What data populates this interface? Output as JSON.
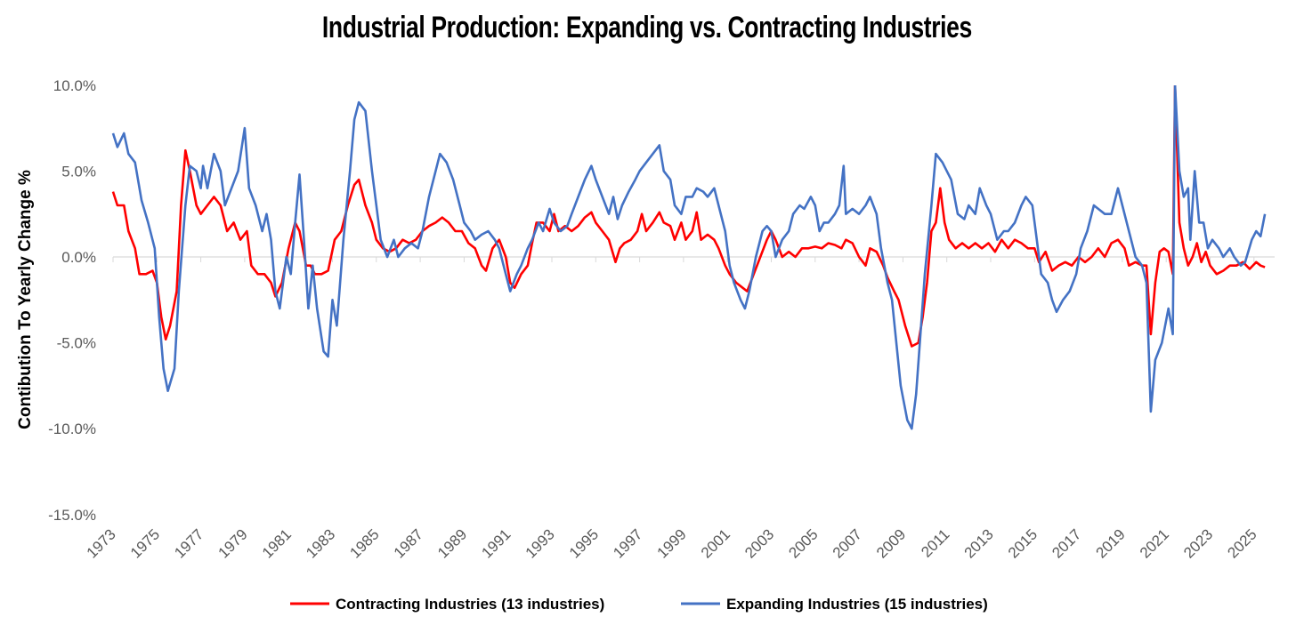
{
  "chart_data": {
    "type": "line",
    "title": "Industrial Production: Expanding vs. Contracting Industries",
    "xlabel": "",
    "ylabel": "Contibution To Yearly Change %",
    "ylim": [
      -15,
      10
    ],
    "xlim": [
      1973,
      2026
    ],
    "y_ticks": [
      "10.0%",
      "5.0%",
      "0.0%",
      "-5.0%",
      "-10.0%",
      "-15.0%"
    ],
    "y_tick_values": [
      10,
      5,
      0,
      -5,
      -10,
      -15
    ],
    "x_ticks": [
      "1973",
      "1975",
      "1977",
      "1979",
      "1981",
      "1983",
      "1985",
      "1987",
      "1989",
      "1991",
      "1993",
      "1995",
      "1997",
      "1999",
      "2001",
      "2003",
      "2005",
      "2007",
      "2009",
      "2011",
      "2013",
      "2015",
      "2017",
      "2019",
      "2021",
      "2023",
      "2025"
    ],
    "grid": false,
    "legend_position": "bottom",
    "series": [
      {
        "name": "Contracting Industries (13 industries)",
        "color": "#FF0000",
        "x": [
          1973.0,
          1973.2,
          1973.5,
          1973.7,
          1974.0,
          1974.2,
          1974.5,
          1974.8,
          1975.0,
          1975.2,
          1975.4,
          1975.6,
          1975.9,
          1976.1,
          1976.3,
          1976.5,
          1976.8,
          1977.0,
          1977.3,
          1977.6,
          1977.9,
          1978.2,
          1978.5,
          1978.8,
          1979.1,
          1979.3,
          1979.6,
          1979.9,
          1980.2,
          1980.4,
          1980.7,
          1981.0,
          1981.3,
          1981.5,
          1981.8,
          1982.0,
          1982.2,
          1982.5,
          1982.8,
          1983.1,
          1983.4,
          1983.7,
          1984.0,
          1984.2,
          1984.5,
          1984.8,
          1985.0,
          1985.3,
          1985.6,
          1985.9,
          1986.2,
          1986.5,
          1986.8,
          1987.1,
          1987.4,
          1987.7,
          1988.0,
          1988.3,
          1988.6,
          1988.9,
          1989.2,
          1989.5,
          1989.8,
          1990.0,
          1990.3,
          1990.6,
          1990.9,
          1991.1,
          1991.3,
          1991.6,
          1991.9,
          1992.1,
          1992.3,
          1992.6,
          1992.9,
          1993.1,
          1993.3,
          1993.6,
          1993.9,
          1994.2,
          1994.5,
          1994.8,
          1995.0,
          1995.3,
          1995.6,
          1995.9,
          1996.1,
          1996.3,
          1996.6,
          1996.9,
          1997.1,
          1997.3,
          1997.6,
          1997.9,
          1998.1,
          1998.4,
          1998.6,
          1998.9,
          1999.1,
          1999.4,
          1999.6,
          1999.8,
          2000.1,
          2000.4,
          2000.6,
          2000.9,
          2001.1,
          2001.4,
          2001.7,
          2001.9,
          2002.2,
          2002.5,
          2002.8,
          2003.0,
          2003.2,
          2003.5,
          2003.8,
          2004.1,
          2004.4,
          2004.7,
          2005.0,
          2005.3,
          2005.6,
          2005.9,
          2006.2,
          2006.4,
          2006.7,
          2007.0,
          2007.3,
          2007.5,
          2007.8,
          2008.1,
          2008.3,
          2008.6,
          2008.8,
          2009.1,
          2009.4,
          2009.7,
          2009.9,
          2010.1,
          2010.3,
          2010.5,
          2010.7,
          2010.9,
          2011.1,
          2011.4,
          2011.7,
          2012.0,
          2012.3,
          2012.6,
          2012.9,
          2013.2,
          2013.5,
          2013.8,
          2014.1,
          2014.4,
          2014.7,
          2015.0,
          2015.2,
          2015.5,
          2015.8,
          2016.1,
          2016.4,
          2016.7,
          2017.0,
          2017.3,
          2017.6,
          2017.9,
          2018.2,
          2018.5,
          2018.8,
          2019.1,
          2019.3,
          2019.6,
          2019.9,
          2020.1,
          2020.3,
          2020.5,
          2020.7,
          2020.9,
          2021.1,
          2021.3,
          2021.4,
          2021.6,
          2021.8,
          2022.0,
          2022.2,
          2022.4,
          2022.6,
          2022.8,
          2023.0,
          2023.3,
          2023.6,
          2023.9,
          2024.2,
          2024.5,
          2024.8,
          2025.1,
          2025.3,
          2025.5
        ],
        "values": [
          3.8,
          3.0,
          3.0,
          1.5,
          0.5,
          -1.0,
          -1.0,
          -0.8,
          -1.5,
          -3.5,
          -4.8,
          -4.0,
          -2.0,
          3.0,
          6.2,
          5.0,
          3.0,
          2.5,
          3.0,
          3.5,
          3.0,
          1.5,
          2.0,
          1.0,
          1.5,
          -0.5,
          -1.0,
          -1.0,
          -1.5,
          -2.3,
          -1.5,
          0.5,
          2.0,
          1.5,
          -0.5,
          -0.5,
          -1.0,
          -1.0,
          -0.8,
          1.0,
          1.5,
          3.0,
          4.2,
          4.5,
          3.0,
          2.0,
          1.0,
          0.5,
          0.3,
          0.5,
          1.0,
          0.8,
          1.0,
          1.5,
          1.8,
          2.0,
          2.3,
          2.0,
          1.5,
          1.5,
          0.8,
          0.5,
          -0.5,
          -0.8,
          0.5,
          1.0,
          0.0,
          -1.5,
          -1.8,
          -1.0,
          -0.5,
          0.8,
          2.0,
          2.0,
          1.5,
          2.5,
          1.5,
          1.8,
          1.5,
          1.8,
          2.3,
          2.6,
          2.0,
          1.5,
          1.0,
          -0.3,
          0.5,
          0.8,
          1.0,
          1.5,
          2.5,
          1.5,
          2.0,
          2.6,
          2.0,
          1.8,
          1.0,
          2.0,
          1.0,
          1.5,
          2.6,
          1.0,
          1.3,
          1.0,
          0.5,
          -0.5,
          -1.0,
          -1.5,
          -1.8,
          -2.0,
          -1.0,
          0.0,
          1.0,
          1.5,
          1.0,
          0.0,
          0.3,
          0.0,
          0.5,
          0.5,
          0.6,
          0.5,
          0.8,
          0.7,
          0.5,
          1.0,
          0.8,
          0.0,
          -0.5,
          0.5,
          0.3,
          -0.5,
          -1.2,
          -2.0,
          -2.5,
          -4.0,
          -5.2,
          -5.0,
          -3.5,
          -1.5,
          1.5,
          2.0,
          4.0,
          2.0,
          1.0,
          0.5,
          0.8,
          0.5,
          0.8,
          0.5,
          0.8,
          0.3,
          1.0,
          0.5,
          1.0,
          0.8,
          0.5,
          0.5,
          -0.3,
          0.3,
          -0.8,
          -0.5,
          -0.3,
          -0.5,
          0.0,
          -0.3,
          0.0,
          0.5,
          0.0,
          0.8,
          1.0,
          0.5,
          -0.5,
          -0.3,
          -0.5,
          -0.5,
          -4.5,
          -1.5,
          0.3,
          0.5,
          0.3,
          -1.0,
          10.0,
          2.0,
          0.5,
          -0.5,
          0.0,
          0.8,
          -0.3,
          0.3,
          -0.5,
          -1.0,
          -0.8,
          -0.5,
          -0.5,
          -0.3,
          -0.7,
          -0.3,
          -0.5,
          -0.6
        ]
      },
      {
        "name": "Expanding Industries (15 industries)",
        "color": "#4472C4",
        "x": [
          1973.0,
          1973.2,
          1973.5,
          1973.7,
          1974.0,
          1974.3,
          1974.6,
          1974.9,
          1975.1,
          1975.3,
          1975.5,
          1975.8,
          1976.0,
          1976.3,
          1976.5,
          1976.8,
          1977.0,
          1977.1,
          1977.3,
          1977.6,
          1977.9,
          1978.1,
          1978.4,
          1978.7,
          1979.0,
          1979.2,
          1979.5,
          1979.8,
          1980.0,
          1980.2,
          1980.4,
          1980.6,
          1980.9,
          1981.1,
          1981.3,
          1981.5,
          1981.7,
          1981.9,
          1982.1,
          1982.3,
          1982.6,
          1982.8,
          1983.0,
          1983.2,
          1983.5,
          1983.8,
          1984.0,
          1984.2,
          1984.5,
          1984.8,
          1985.0,
          1985.2,
          1985.5,
          1985.8,
          1986.0,
          1986.3,
          1986.6,
          1986.9,
          1987.1,
          1987.4,
          1987.7,
          1987.9,
          1988.2,
          1988.5,
          1988.8,
          1989.0,
          1989.3,
          1989.5,
          1989.8,
          1990.1,
          1990.4,
          1990.6,
          1990.9,
          1991.1,
          1991.4,
          1991.6,
          1991.9,
          1992.1,
          1992.4,
          1992.6,
          1992.9,
          1993.1,
          1993.4,
          1993.7,
          1993.9,
          1994.2,
          1994.5,
          1994.8,
          1995.0,
          1995.3,
          1995.6,
          1995.8,
          1996.0,
          1996.2,
          1996.5,
          1996.8,
          1997.0,
          1997.3,
          1997.6,
          1997.9,
          1998.1,
          1998.4,
          1998.6,
          1998.9,
          1999.1,
          1999.4,
          1999.6,
          1999.9,
          2000.1,
          2000.4,
          2000.6,
          2000.9,
          2001.1,
          2001.3,
          2001.6,
          2001.8,
          2002.0,
          2002.3,
          2002.6,
          2002.8,
          2003.0,
          2003.2,
          2003.5,
          2003.8,
          2004.0,
          2004.3,
          2004.5,
          2004.8,
          2005.0,
          2005.2,
          2005.4,
          2005.6,
          2005.9,
          2006.1,
          2006.3,
          2006.4,
          2006.7,
          2007.0,
          2007.3,
          2007.5,
          2007.8,
          2008.0,
          2008.3,
          2008.5,
          2008.7,
          2008.9,
          2009.2,
          2009.4,
          2009.6,
          2009.8,
          2010.0,
          2010.3,
          2010.5,
          2010.8,
          2011.0,
          2011.2,
          2011.5,
          2011.8,
          2012.0,
          2012.3,
          2012.5,
          2012.8,
          2013.0,
          2013.3,
          2013.6,
          2013.8,
          2014.1,
          2014.4,
          2014.6,
          2014.9,
          2015.1,
          2015.3,
          2015.6,
          2015.8,
          2016.0,
          2016.3,
          2016.6,
          2016.9,
          2017.1,
          2017.4,
          2017.7,
          2017.9,
          2018.2,
          2018.5,
          2018.8,
          2019.0,
          2019.3,
          2019.6,
          2019.9,
          2020.1,
          2020.3,
          2020.5,
          2020.8,
          2021.1,
          2021.3,
          2021.4,
          2021.6,
          2021.8,
          2022.0,
          2022.1,
          2022.3,
          2022.5,
          2022.7,
          2022.9,
          2023.1,
          2023.4,
          2023.6,
          2023.9,
          2024.1,
          2024.4,
          2024.6,
          2024.9,
          2025.1,
          2025.3,
          2025.5
        ],
        "values": [
          7.2,
          6.4,
          7.2,
          6.0,
          5.5,
          3.3,
          2.0,
          0.5,
          -3.5,
          -6.5,
          -7.8,
          -6.5,
          -2.0,
          3.0,
          5.3,
          5.0,
          4.0,
          5.3,
          4.0,
          6.0,
          5.0,
          3.0,
          4.0,
          5.0,
          7.5,
          4.0,
          3.0,
          1.5,
          2.5,
          1.0,
          -2.0,
          -3.0,
          0.0,
          -1.0,
          2.0,
          4.8,
          1.0,
          -3.0,
          -0.5,
          -3.0,
          -5.5,
          -5.8,
          -2.5,
          -4.0,
          1.0,
          5.0,
          8.0,
          9.0,
          8.5,
          5.0,
          3.0,
          1.0,
          0.0,
          1.0,
          0.0,
          0.5,
          0.8,
          0.5,
          1.5,
          3.5,
          5.0,
          6.0,
          5.5,
          4.5,
          3.0,
          2.0,
          1.5,
          1.0,
          1.3,
          1.5,
          1.0,
          0.5,
          -1.0,
          -2.0,
          -1.0,
          -0.5,
          0.5,
          1.0,
          2.0,
          1.5,
          2.8,
          2.0,
          1.5,
          1.8,
          2.5,
          3.5,
          4.5,
          5.3,
          4.5,
          3.5,
          2.5,
          3.5,
          2.2,
          3.0,
          3.8,
          4.5,
          5.0,
          5.5,
          6.0,
          6.5,
          5.0,
          4.5,
          3.0,
          2.5,
          3.5,
          3.5,
          4.0,
          3.8,
          3.5,
          4.0,
          3.0,
          1.5,
          -0.5,
          -1.5,
          -2.5,
          -3.0,
          -2.0,
          0.0,
          1.5,
          1.8,
          1.5,
          0.0,
          1.0,
          1.5,
          2.5,
          3.0,
          2.8,
          3.5,
          3.0,
          1.5,
          2.0,
          2.0,
          2.5,
          3.0,
          5.3,
          2.5,
          2.8,
          2.5,
          3.0,
          3.5,
          2.5,
          0.5,
          -1.5,
          -2.5,
          -5.0,
          -7.5,
          -9.5,
          -10.0,
          -8.0,
          -4.5,
          -1.0,
          3.0,
          6.0,
          5.5,
          5.0,
          4.5,
          2.5,
          2.2,
          3.0,
          2.5,
          4.0,
          3.0,
          2.5,
          1.0,
          1.5,
          1.5,
          2.0,
          3.0,
          3.5,
          3.0,
          1.0,
          -1.0,
          -1.5,
          -2.5,
          -3.2,
          -2.5,
          -2.0,
          -1.0,
          0.5,
          1.5,
          3.0,
          2.8,
          2.5,
          2.5,
          4.0,
          3.0,
          1.5,
          0.0,
          -0.5,
          -1.5,
          -9.0,
          -6.0,
          -5.0,
          -3.0,
          -4.5,
          10.0,
          5.0,
          3.5,
          4.0,
          1.0,
          5.0,
          2.0,
          2.0,
          0.5,
          1.0,
          0.5,
          0.0,
          0.5,
          0.0,
          -0.5,
          -0.3,
          1.0,
          1.5,
          1.2,
          2.5
        ]
      }
    ]
  }
}
